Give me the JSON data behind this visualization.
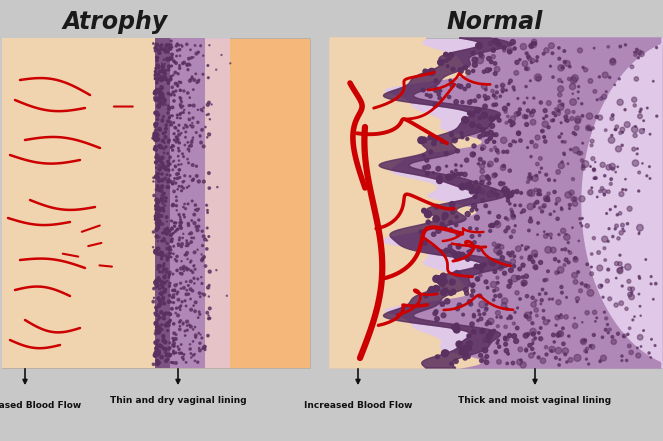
{
  "bg_color": "#c8c8c8",
  "title_atrophy": "Atrophy",
  "title_normal": "Normal",
  "skin_color_left": "#f0d4b0",
  "skin_color_right": "#f0d4b0",
  "orange_skin": "#f5b87a",
  "purple_dark": "#5a3060",
  "purple_mid": "#b088b8",
  "purple_light": "#d0a8d8",
  "purple_lightest": "#e0c8e8",
  "blood_vessel_color": "#cc0000",
  "label_decreased_blood_flow": "Decreased Blood Flow",
  "label_thin_dry": "Thin and dry vaginal lining",
  "label_increased_blood_flow": "Increased Blood Flow",
  "label_thick_moist": "Thick and moist vaginal lining"
}
